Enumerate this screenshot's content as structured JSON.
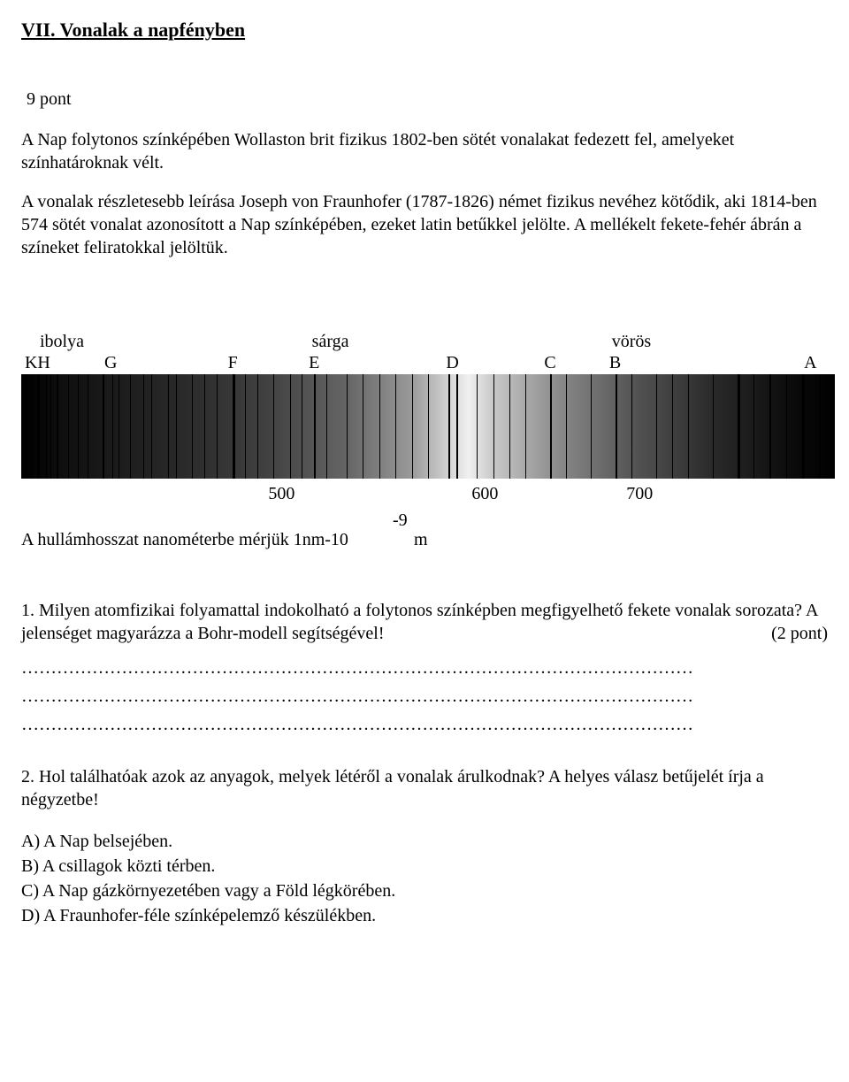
{
  "title": "VII. Vonalak a napfényben",
  "points": "9 pont",
  "intro_p1": "A Nap folytonos színképében Wollaston brit fizikus 1802-ben sötét vonalakat fedezett fel, amelyeket  színhatároknak vélt.",
  "intro_p2": "A vonalak részletesebb leírása Joseph von Fraunhofer (1787-1826) német fizikus nevéhez kötődik, aki 1814-ben 574 sötét vonalat azonosított a Nap színképében, ezeket latin betűkkel jelölte. A mellékelt fekete-fehér ábrán a színeket feliratokkal jelöltük.",
  "colorLabels": [
    {
      "text": "ibolya",
      "pct": 5
    },
    {
      "text": "sárga",
      "pct": 38
    },
    {
      "text": "vörös",
      "pct": 75
    }
  ],
  "letters": [
    {
      "text": "KH",
      "pct": 2
    },
    {
      "text": "G",
      "pct": 11
    },
    {
      "text": "F",
      "pct": 26
    },
    {
      "text": "E",
      "pct": 36
    },
    {
      "text": "D",
      "pct": 53
    },
    {
      "text": "C",
      "pct": 65
    },
    {
      "text": "B",
      "pct": 73
    },
    {
      "text": "A",
      "pct": 97
    }
  ],
  "ticks": [
    {
      "text": "500",
      "pct": 32
    },
    {
      "text": "600",
      "pct": 57
    },
    {
      "text": "700",
      "pct": 76
    }
  ],
  "spectrum_lines": [
    {
      "pos": 0.5,
      "w": 2
    },
    {
      "pos": 1.2,
      "w": 1
    },
    {
      "pos": 2.0,
      "w": 3
    },
    {
      "pos": 3.0,
      "w": 1
    },
    {
      "pos": 3.6,
      "w": 1
    },
    {
      "pos": 4.4,
      "w": 2
    },
    {
      "pos": 5.8,
      "w": 1
    },
    {
      "pos": 7.0,
      "w": 1
    },
    {
      "pos": 8.2,
      "w": 1
    },
    {
      "pos": 10.0,
      "w": 2
    },
    {
      "pos": 11.2,
      "w": 1
    },
    {
      "pos": 12.0,
      "w": 1
    },
    {
      "pos": 13.4,
      "w": 1
    },
    {
      "pos": 15.0,
      "w": 1
    },
    {
      "pos": 16.0,
      "w": 1
    },
    {
      "pos": 18.0,
      "w": 1
    },
    {
      "pos": 19.0,
      "w": 1
    },
    {
      "pos": 21.0,
      "w": 1
    },
    {
      "pos": 22.5,
      "w": 1
    },
    {
      "pos": 24.0,
      "w": 1
    },
    {
      "pos": 26.0,
      "w": 3
    },
    {
      "pos": 27.5,
      "w": 1
    },
    {
      "pos": 29.0,
      "w": 1
    },
    {
      "pos": 31.0,
      "w": 1
    },
    {
      "pos": 33.0,
      "w": 1
    },
    {
      "pos": 34.5,
      "w": 1
    },
    {
      "pos": 36.0,
      "w": 2
    },
    {
      "pos": 37.5,
      "w": 1
    },
    {
      "pos": 40.0,
      "w": 1
    },
    {
      "pos": 42.0,
      "w": 1
    },
    {
      "pos": 44.0,
      "w": 1
    },
    {
      "pos": 46.0,
      "w": 1
    },
    {
      "pos": 48.0,
      "w": 1
    },
    {
      "pos": 50.0,
      "w": 1
    },
    {
      "pos": 52.5,
      "w": 2
    },
    {
      "pos": 53.5,
      "w": 2
    },
    {
      "pos": 56.0,
      "w": 1
    },
    {
      "pos": 58.0,
      "w": 1
    },
    {
      "pos": 60.0,
      "w": 1
    },
    {
      "pos": 62.0,
      "w": 1
    },
    {
      "pos": 65.0,
      "w": 2
    },
    {
      "pos": 67.0,
      "w": 1
    },
    {
      "pos": 70.0,
      "w": 1
    },
    {
      "pos": 73.0,
      "w": 2
    },
    {
      "pos": 75.0,
      "w": 1
    },
    {
      "pos": 78.0,
      "w": 1
    },
    {
      "pos": 80.0,
      "w": 1
    },
    {
      "pos": 82.0,
      "w": 1
    },
    {
      "pos": 85.0,
      "w": 1
    },
    {
      "pos": 88.0,
      "w": 3
    },
    {
      "pos": 90.0,
      "w": 1
    },
    {
      "pos": 92.0,
      "w": 2
    },
    {
      "pos": 94.0,
      "w": 1
    },
    {
      "pos": 96.0,
      "w": 3
    },
    {
      "pos": 98.0,
      "w": 2
    }
  ],
  "wavelength_exp": "-9",
  "wavelength_text": "A hullámhosszat nanométerbe mérjük 1nm-10",
  "wavelength_m": "m",
  "q1": "1. Milyen atomfizikai folyamattal indokolható a folytonos színképben megfigyelhető fekete vonalak sorozata? A jelenséget magyarázza a Bohr-modell segítségével!",
  "q1_points": "(2 pont)",
  "q2": "2. Hol találhatóak azok az anyagok, melyek létéről a vonalak árulkodnak? A helyes válasz betűjelét írja a négyzetbe!",
  "optA": "A) A Nap belsejében.",
  "optB": "B) A csillagok közti térben.",
  "optC": "C) A Nap gázkörnyezetében vagy a Föld légkörében.",
  "optD": "D) A Fraunhofer-féle színképelemző készülékben."
}
